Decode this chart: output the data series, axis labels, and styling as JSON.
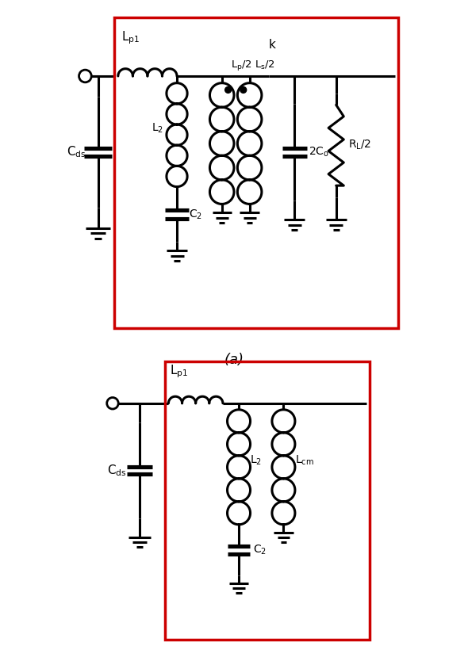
{
  "fig_width": 5.9,
  "fig_height": 8.39,
  "dpi": 100,
  "bg_color": "#ffffff",
  "line_color": "#000000",
  "red_color": "#cc0000",
  "line_width": 2.2
}
